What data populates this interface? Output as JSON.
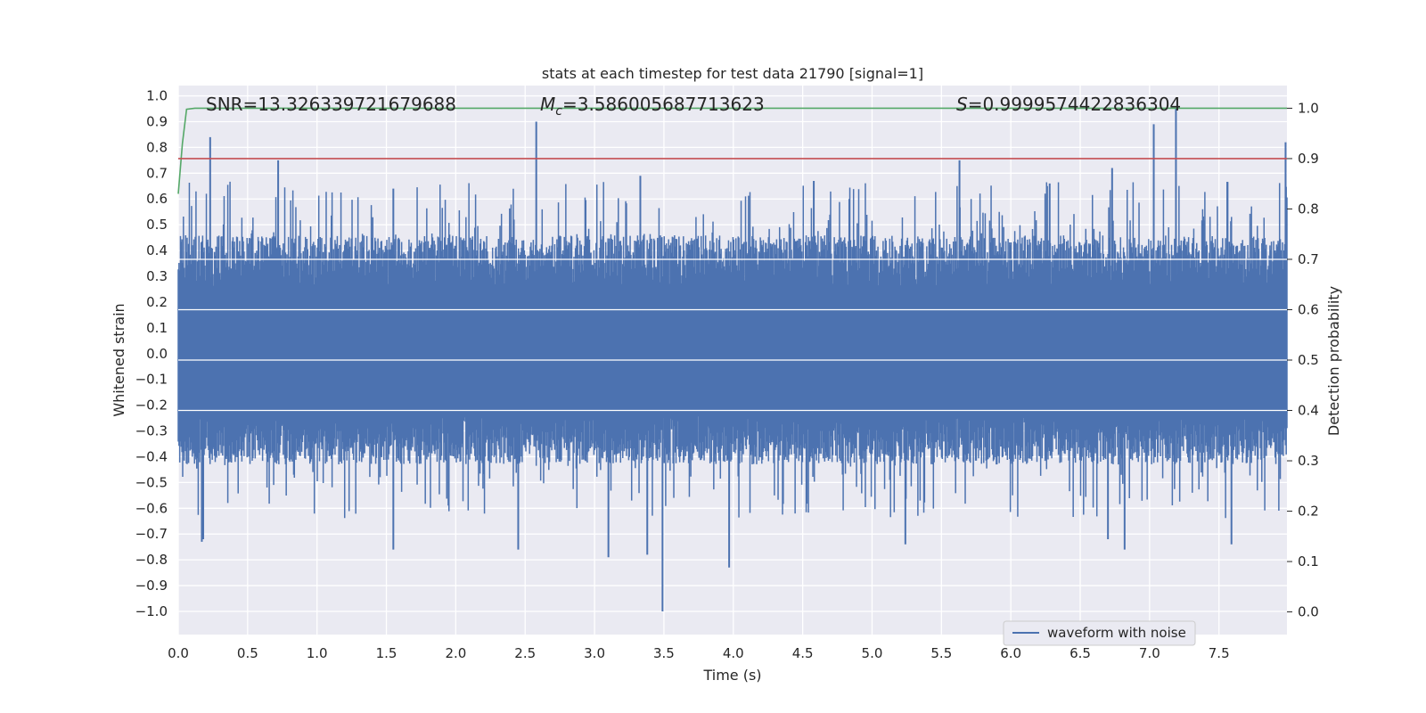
{
  "chart_data": {
    "type": "line",
    "title": "stats at each timestep for test data 21790 [signal=1]",
    "xlabel": "Time (s)",
    "ylabel": "Whitened strain",
    "y2label": "Detection probability",
    "xlim": [
      0.0,
      7.99
    ],
    "ylim": [
      -1.09,
      1.04
    ],
    "y2lim": [
      -0.045,
      1.045
    ],
    "xticks": [
      "0.0",
      "0.5",
      "1.0",
      "1.5",
      "2.0",
      "2.5",
      "3.0",
      "3.5",
      "4.0",
      "4.5",
      "5.0",
      "5.5",
      "6.0",
      "6.5",
      "7.0",
      "7.5"
    ],
    "yticks": [
      "1.0",
      "0.9",
      "0.8",
      "0.7",
      "0.6",
      "0.5",
      "0.4",
      "0.3",
      "0.2",
      "0.1",
      "0.0",
      "−0.1",
      "−0.2",
      "−0.3",
      "−0.4",
      "−0.5",
      "−0.6",
      "−0.7",
      "−0.8",
      "−0.9",
      "−1.0"
    ],
    "y2ticks": [
      "1.0",
      "0.9",
      "0.8",
      "0.7",
      "0.6",
      "0.5",
      "0.4",
      "0.3",
      "0.2",
      "0.1",
      "0.0"
    ],
    "annotations": {
      "snr": "SNR=13.326339721679688",
      "mc_symbol": "M",
      "mc_sub": "c",
      "mc_value": "=3.586005687713623",
      "s_symbol": "S",
      "s_value": "=0.9999574422836304"
    },
    "legend": {
      "label": "waveform with noise",
      "location": "lower-right"
    },
    "series": [
      {
        "name": "waveform with noise",
        "axis": "left",
        "color": "#4c72b0",
        "envelope_upper": 0.47,
        "envelope_lower": -0.44,
        "peaks": [
          {
            "x": 0.23,
            "y": 0.84
          },
          {
            "x": 0.72,
            "y": 0.75
          },
          {
            "x": 2.58,
            "y": 0.9
          },
          {
            "x": 5.63,
            "y": 0.75
          },
          {
            "x": 6.73,
            "y": 0.72
          },
          {
            "x": 7.03,
            "y": 0.89
          },
          {
            "x": 7.19,
            "y": 0.95
          },
          {
            "x": 7.98,
            "y": 0.82
          },
          {
            "x": 1.55,
            "y": 0.64
          },
          {
            "x": 3.33,
            "y": 0.69
          },
          {
            "x": 4.58,
            "y": 0.67
          },
          {
            "x": 6.28,
            "y": 0.66
          },
          {
            "x": 3.49,
            "y": -1.0
          },
          {
            "x": 3.97,
            "y": -0.83
          },
          {
            "x": 3.1,
            "y": -0.79
          },
          {
            "x": 1.55,
            "y": -0.76
          },
          {
            "x": 2.45,
            "y": -0.76
          },
          {
            "x": 6.82,
            "y": -0.76
          },
          {
            "x": 3.38,
            "y": -0.78
          },
          {
            "x": 0.18,
            "y": -0.72
          },
          {
            "x": 0.17,
            "y": -0.73
          },
          {
            "x": 5.24,
            "y": -0.74
          },
          {
            "x": 7.59,
            "y": -0.74
          },
          {
            "x": 6.7,
            "y": -0.72
          }
        ]
      },
      {
        "name": "detection probability",
        "axis": "right",
        "color": "#55a868",
        "x": [
          0.0,
          0.03,
          0.06,
          0.12,
          7.99
        ],
        "values": [
          0.83,
          0.93,
          0.998,
          1.0,
          1.0
        ]
      },
      {
        "name": "threshold",
        "axis": "right",
        "color": "#c44e52",
        "x": [
          0.0,
          7.99
        ],
        "values": [
          0.9,
          0.9
        ]
      }
    ]
  }
}
